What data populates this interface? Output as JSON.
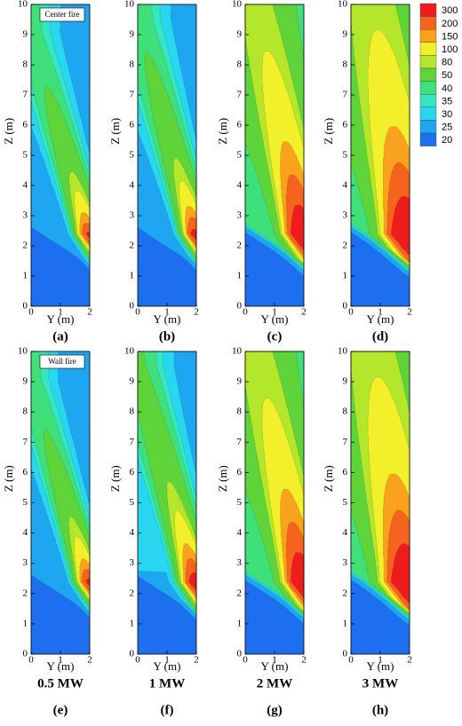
{
  "chart_data": [
    {
      "type": "contour",
      "title": "(a)",
      "annotation": "Center fire",
      "xlabel": "Y (m)",
      "ylabel": "Z (m)",
      "xlim": [
        0,
        2
      ],
      "ylim": [
        0,
        10
      ],
      "xticks": [
        0,
        1,
        2
      ],
      "yticks": [
        0,
        1,
        2,
        3,
        4,
        5,
        6,
        7,
        8,
        9,
        10
      ]
    },
    {
      "type": "contour",
      "title": "(b)",
      "xlabel": "Y (m)",
      "ylabel": "Z (m)",
      "xlim": [
        0,
        2
      ],
      "ylim": [
        0,
        10
      ],
      "xticks": [
        0,
        1,
        2
      ],
      "yticks": [
        0,
        1,
        2,
        3,
        4,
        5,
        6,
        7,
        8,
        9,
        10
      ]
    },
    {
      "type": "contour",
      "title": "(c)",
      "xlabel": "Y (m)",
      "ylabel": "Z (m)",
      "xlim": [
        0,
        2
      ],
      "ylim": [
        0,
        10
      ],
      "xticks": [
        0,
        1,
        2
      ],
      "yticks": [
        0,
        1,
        2,
        3,
        4,
        5,
        6,
        7,
        8,
        9,
        10
      ]
    },
    {
      "type": "contour",
      "title": "(d)",
      "xlabel": "Y (m)",
      "ylabel": "Z (m)",
      "xlim": [
        0,
        2
      ],
      "ylim": [
        0,
        10
      ],
      "xticks": [
        0,
        1,
        2
      ],
      "yticks": [
        0,
        1,
        2,
        3,
        4,
        5,
        6,
        7,
        8,
        9,
        10
      ]
    },
    {
      "type": "contour",
      "title": "(e)",
      "subtitle": "0.5 MW",
      "annotation": "Wall fire",
      "xlabel": "Y (m)",
      "ylabel": "Z (m)",
      "xlim": [
        0,
        2
      ],
      "ylim": [
        0,
        10
      ],
      "xticks": [
        0,
        1,
        2
      ],
      "yticks": [
        0,
        1,
        2,
        3,
        4,
        5,
        6,
        7,
        8,
        9,
        10
      ]
    },
    {
      "type": "contour",
      "title": "(f)",
      "subtitle": "1 MW",
      "xlabel": "Y (m)",
      "ylabel": "Z (m)",
      "xlim": [
        0,
        2
      ],
      "ylim": [
        0,
        10
      ],
      "xticks": [
        0,
        1,
        2
      ],
      "yticks": [
        0,
        1,
        2,
        3,
        4,
        5,
        6,
        7,
        8,
        9,
        10
      ]
    },
    {
      "type": "contour",
      "title": "(g)",
      "subtitle": "2 MW",
      "xlabel": "Y (m)",
      "ylabel": "Z (m)",
      "xlim": [
        0,
        2
      ],
      "ylim": [
        0,
        10
      ],
      "xticks": [
        0,
        1,
        2
      ],
      "yticks": [
        0,
        1,
        2,
        3,
        4,
        5,
        6,
        7,
        8,
        9,
        10
      ]
    },
    {
      "type": "contour",
      "title": "(h)",
      "subtitle": "3 MW",
      "xlabel": "Y (m)",
      "ylabel": "Z (m)",
      "xlim": [
        0,
        2
      ],
      "ylim": [
        0,
        10
      ],
      "xticks": [
        0,
        1,
        2
      ],
      "yticks": [
        0,
        1,
        2,
        3,
        4,
        5,
        6,
        7,
        8,
        9,
        10
      ]
    }
  ],
  "colorbar": {
    "levels": [
      300,
      200,
      150,
      100,
      80,
      50,
      40,
      35,
      30,
      25,
      20
    ],
    "colors": [
      "#ee1c1c",
      "#f5641e",
      "#f8a21e",
      "#f2f02a",
      "#b4e62c",
      "#5fd43a",
      "#3fe07a",
      "#35e6c0",
      "#28d6f0",
      "#1ea6f0",
      "#1e6ff0"
    ]
  }
}
